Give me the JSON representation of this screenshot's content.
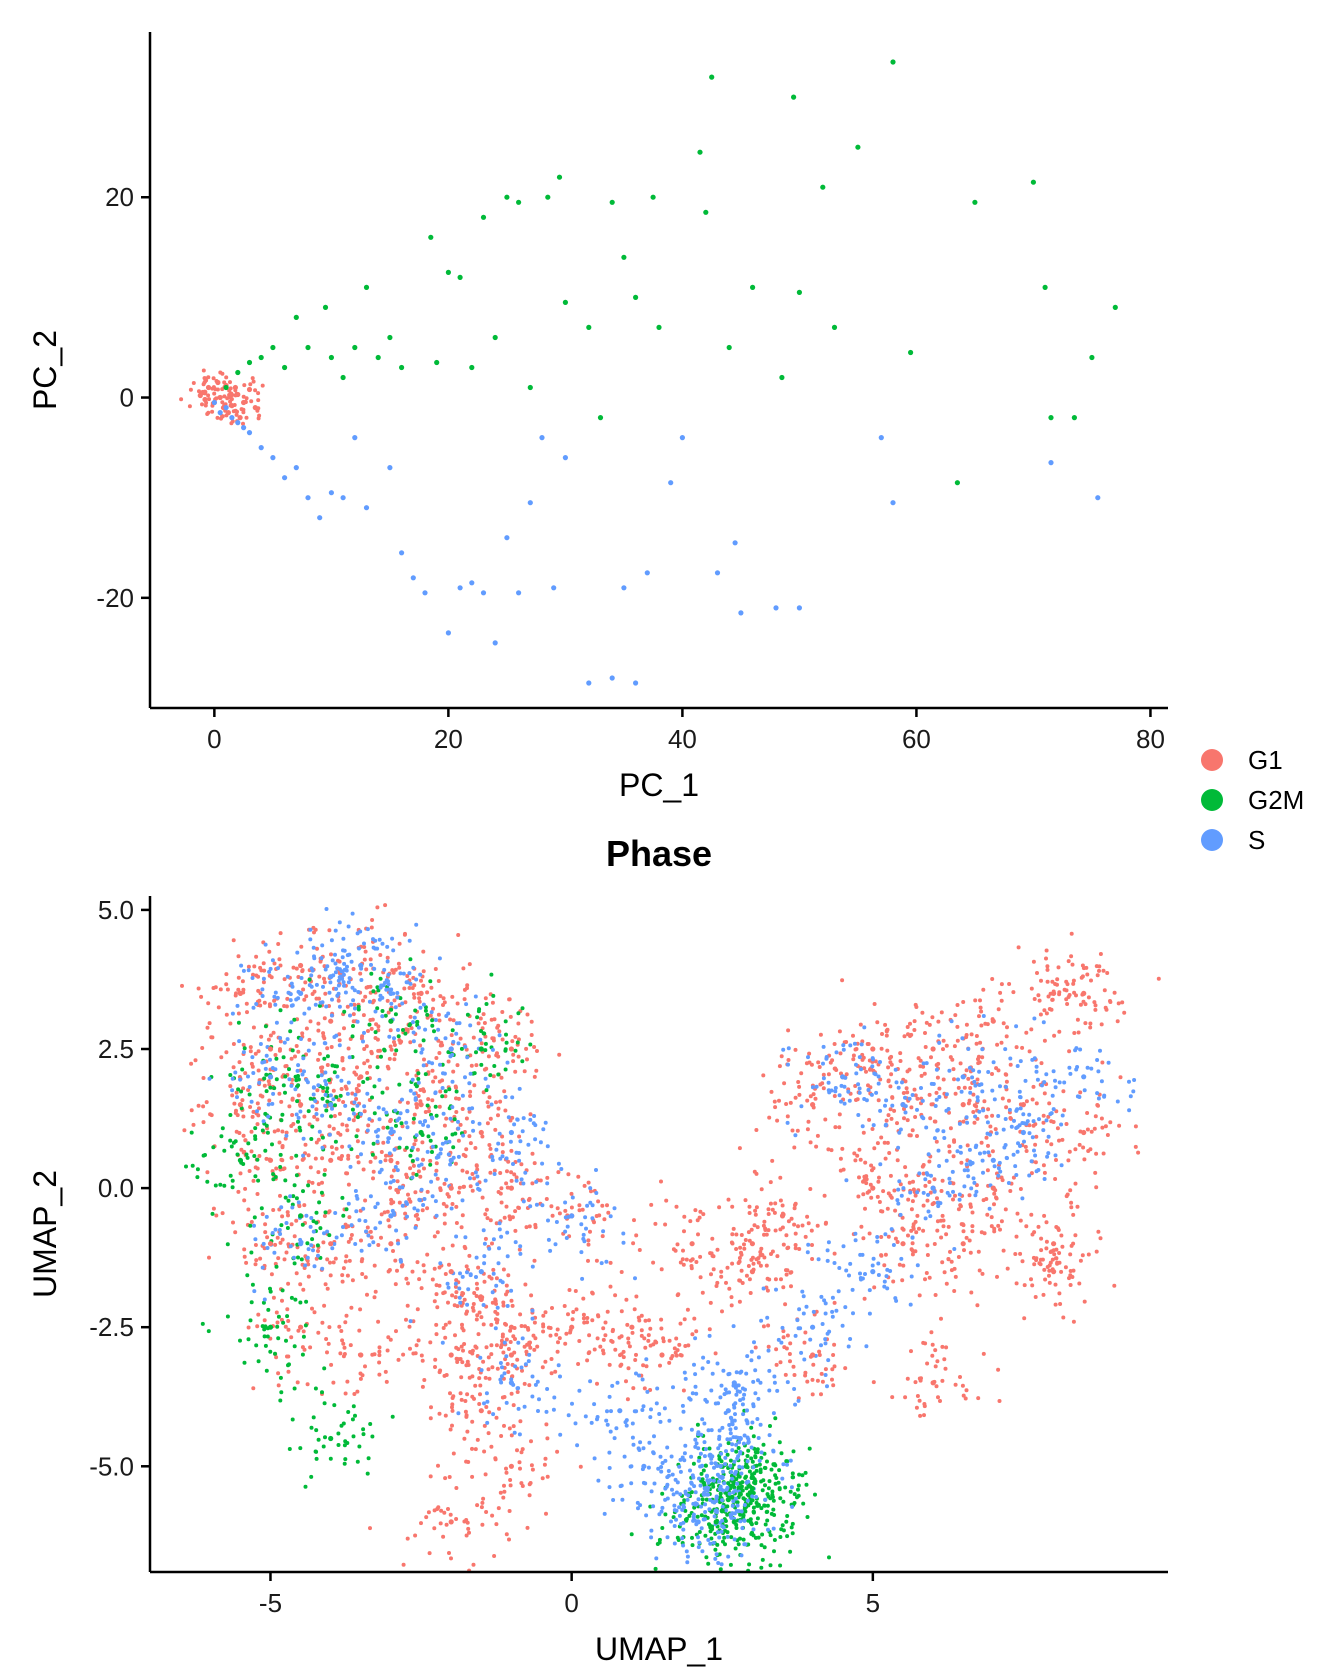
{
  "colors": {
    "G1": "#F8766D",
    "G2M": "#00BA38",
    "S": "#619CFF"
  },
  "legend": {
    "entries": [
      {
        "label": "G1",
        "color": "#F8766D"
      },
      {
        "label": "G2M",
        "color": "#00BA38"
      },
      {
        "label": "S",
        "color": "#619CFF"
      }
    ]
  },
  "chart_data": [
    {
      "type": "scatter",
      "title": "",
      "xlabel": "PC_1",
      "ylabel": "PC_2",
      "xlim": [
        -5.5,
        81.5
      ],
      "ylim": [
        -31,
        36.5
      ],
      "xticks": [
        0,
        20,
        40,
        60,
        80
      ],
      "xtick_labels": [
        "0",
        "20",
        "40",
        "60",
        "80"
      ],
      "yticks": [
        -20,
        0,
        20
      ],
      "ytick_labels": [
        "-20",
        "0",
        "20"
      ],
      "grid": false,
      "legend": "right",
      "series": [
        {
          "name": "G1",
          "x": [
            -1,
            -0.5,
            0,
            0.5,
            1,
            1.5,
            2,
            -0.8,
            0.3,
            1.2,
            2.5,
            3,
            -1.2,
            0.8,
            1.8,
            2.2,
            3.5
          ],
          "y": [
            0.5,
            1,
            -0.5,
            0,
            1.2,
            -0.8,
            0.3,
            -0.2,
            1.5,
            -1.5,
            -0.5,
            0.8,
            0.2,
            -1,
            1,
            -2,
            -1
          ]
        },
        {
          "name": "G2M",
          "x": [
            1,
            2,
            3,
            4,
            5,
            6,
            7,
            8,
            9.5,
            10,
            11,
            12,
            13,
            14,
            15,
            16,
            18.5,
            19,
            20,
            21,
            22,
            23,
            24,
            25,
            26,
            27,
            28.5,
            29.5,
            30,
            32,
            33,
            34,
            35,
            36,
            37.5,
            38,
            41.5,
            42,
            42.5,
            44,
            46,
            48.5,
            49.5,
            50,
            52,
            53,
            55,
            58,
            59.5,
            63.5,
            65,
            70,
            71,
            71.5,
            73.5,
            75,
            77
          ],
          "y": [
            1,
            2.5,
            3.5,
            4,
            5,
            3,
            8,
            5,
            9,
            4,
            2,
            5,
            11,
            4,
            6,
            3,
            16,
            3.5,
            12.5,
            12,
            3,
            18,
            6,
            20,
            19.5,
            1,
            20,
            22,
            9.5,
            7,
            -2,
            19.5,
            14,
            10,
            20,
            7,
            24.5,
            18.5,
            32,
            5,
            11,
            2,
            30,
            10.5,
            21,
            7,
            25,
            33.5,
            4.5,
            -8.5,
            19.5,
            21.5,
            11,
            -2,
            -2,
            4,
            9
          ]
        },
        {
          "name": "S",
          "x": [
            0,
            0.5,
            1,
            1.5,
            2,
            2.5,
            3,
            4,
            5,
            6,
            7,
            8,
            9,
            10,
            11,
            12,
            13,
            15,
            16,
            17,
            18,
            20,
            21,
            22,
            23,
            24,
            25,
            26,
            27,
            28,
            29,
            30,
            32,
            34,
            35,
            36,
            37,
            39,
            40,
            43,
            44.5,
            45,
            48,
            50,
            57,
            58,
            71.5,
            75.5
          ],
          "y": [
            -0.5,
            -1.5,
            -1,
            -2,
            -2.5,
            -3,
            -3.5,
            -5,
            -6,
            -8,
            -7,
            -10,
            -12,
            -9.5,
            -10,
            -4,
            -11,
            -7,
            -15.5,
            -18,
            -19.5,
            -23.5,
            -19,
            -18.5,
            -19.5,
            -24.5,
            -14,
            -19.5,
            -10.5,
            -4,
            -19,
            -6,
            -28.5,
            -28,
            -19,
            -28.5,
            -17.5,
            -8.5,
            -4,
            -17.5,
            -14.5,
            -21.5,
            -21,
            -21,
            -4,
            -10.5,
            -6.5,
            -10
          ]
        }
      ]
    },
    {
      "type": "scatter",
      "title": "Phase",
      "xlabel": "UMAP_1",
      "ylabel": "UMAP_2",
      "xlim": [
        -7,
        9.9
      ],
      "ylim": [
        -6.9,
        5.25
      ],
      "xticks": [
        -5,
        0,
        5
      ],
      "xtick_labels": [
        "-5",
        "0",
        "5"
      ],
      "yticks": [
        5,
        2.5,
        0,
        -2.5,
        -5
      ],
      "ytick_labels": [
        "5.0",
        "2.5",
        "0.0",
        "-2.5",
        "-5.0"
      ],
      "grid": false,
      "legend": "right",
      "series": [
        {
          "name": "G1",
          "x": [
            -5.5,
            -4.5,
            -3.5,
            -2.5,
            -5,
            -4,
            -3,
            -2,
            -1,
            -5.5,
            -4.5,
            -3.5,
            -2.5,
            -1.5,
            -5,
            -4,
            -3,
            -2,
            -1,
            0,
            -5,
            -4,
            -3,
            -2,
            -1.5,
            -1,
            -4.5,
            -3.5,
            -2,
            -1,
            0,
            1,
            1.5,
            -1.5,
            -1,
            -2,
            2,
            3,
            3.5,
            4.5,
            5,
            6,
            7,
            8,
            8.5,
            4,
            5.5,
            6.5,
            7.5,
            8.5,
            5,
            6,
            7,
            8,
            5.5,
            6.5,
            8,
            6,
            4,
            3
          ],
          "y": [
            3.5,
            4,
            4,
            3.5,
            2.5,
            3,
            3,
            2.5,
            2.5,
            1.5,
            1.5,
            2,
            1.5,
            1,
            0.5,
            0.5,
            0.5,
            0,
            0,
            -0.5,
            -1,
            -1,
            -1,
            -1.5,
            -2,
            -2.5,
            -2.5,
            -3,
            -3,
            -3,
            -2.5,
            -2.5,
            -3,
            -4,
            -5,
            -6,
            -1,
            -1,
            -0.5,
            2,
            2.5,
            2.5,
            3,
            3.5,
            3.5,
            1.5,
            1.5,
            1.5,
            1.5,
            1,
            0,
            0,
            0,
            -1,
            -1,
            -1,
            -1.5,
            -3.5,
            -3,
            -1.5
          ]
        },
        {
          "name": "G2M",
          "x": [
            -5,
            -4,
            -3,
            -2.5,
            -1.5,
            -5.5,
            -4.5,
            -5,
            -4,
            2.5,
            2.8,
            3,
            3.1,
            2.7,
            2.9,
            2.4,
            3,
            2.6
          ],
          "y": [
            2,
            1.5,
            3,
            1,
            2.5,
            0.5,
            -0.5,
            -2.5,
            -4.5,
            -5.8,
            -5.5,
            -5.2,
            -5.7,
            -6,
            -5,
            -6,
            -5.4,
            -5.6
          ]
        },
        {
          "name": "S",
          "x": [
            -4.5,
            -4,
            -3.5,
            -3,
            -2,
            -5,
            -4,
            -3,
            -2,
            -1,
            -4.5,
            -3,
            -1.5,
            0,
            -1,
            2.3,
            2.5,
            2.2,
            2.8,
            2.6,
            2.1,
            2.4,
            4.5,
            5.5,
            6.5,
            7.5,
            8.5,
            6,
            7,
            5,
            4,
            2.7,
            1.2,
            0.8
          ],
          "y": [
            3.5,
            3.8,
            4,
            3.5,
            2.5,
            2,
            1.5,
            1,
            0.5,
            1,
            -1,
            -0.5,
            -1.5,
            -0.5,
            -3.5,
            -4.8,
            -5.2,
            -5.5,
            -4.5,
            -4,
            -6,
            -5.8,
            2,
            1.5,
            2,
            1,
            2,
            0,
            0.5,
            -1.5,
            -2.5,
            -3.5,
            -5,
            -4
          ]
        }
      ]
    }
  ]
}
